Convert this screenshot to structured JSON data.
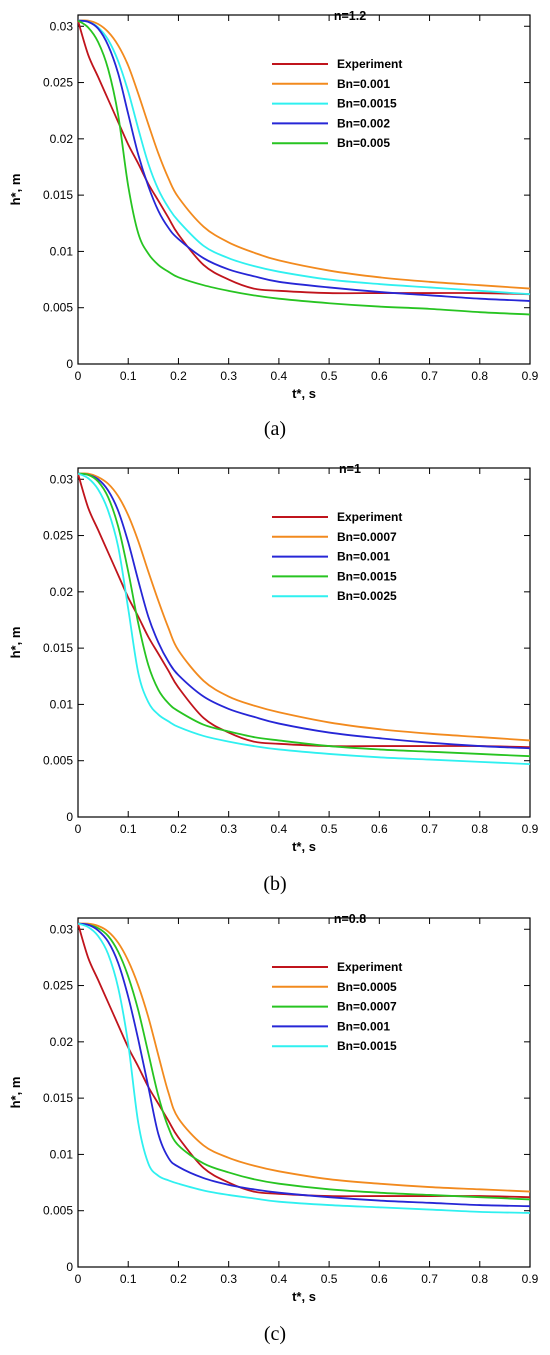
{
  "colors": {
    "experiment": "#c0141c",
    "orange": "#f28a1e",
    "cyan": "#2ff0f0",
    "blue": "#2626d6",
    "green": "#27c421"
  },
  "chart_data": [
    {
      "type": "line",
      "caption": "(a)",
      "annotation": "n=1.2",
      "xlabel": "t*, s",
      "ylabel": "h*, m",
      "xlim": [
        0,
        0.9
      ],
      "ylim": [
        0,
        0.031
      ],
      "xticks": [
        "0",
        "0.1",
        "0.2",
        "0.3",
        "0.4",
        "0.5",
        "0.6",
        "0.7",
        "0.8",
        "0.9"
      ],
      "yticks": [
        "0",
        "0.005",
        "0.01",
        "0.015",
        "0.02",
        "0.025",
        "0.03"
      ],
      "grid": false,
      "legend_position": "top-right",
      "x": [
        0,
        0.02,
        0.04,
        0.06,
        0.08,
        0.1,
        0.12,
        0.14,
        0.16,
        0.18,
        0.2,
        0.25,
        0.3,
        0.35,
        0.4,
        0.5,
        0.6,
        0.7,
        0.8,
        0.9
      ],
      "series": [
        {
          "name": "Experiment",
          "color": "#c0141c",
          "values": [
            0.0305,
            0.0275,
            0.0255,
            0.0235,
            0.0215,
            0.0195,
            0.0178,
            0.016,
            0.0145,
            0.013,
            0.0115,
            0.0088,
            0.0075,
            0.0067,
            0.0065,
            0.0063,
            0.0063,
            0.0063,
            0.0063,
            0.0062
          ]
        },
        {
          "name": "Bn=0.001",
          "color": "#f28a1e",
          "values": [
            0.0305,
            0.0305,
            0.0302,
            0.0295,
            0.0283,
            0.0265,
            0.024,
            0.0213,
            0.0187,
            0.0165,
            0.0148,
            0.0122,
            0.0108,
            0.0099,
            0.0092,
            0.0083,
            0.0077,
            0.0073,
            0.007,
            0.0067
          ]
        },
        {
          "name": "Bn=0.0015",
          "color": "#2ff0f0",
          "values": [
            0.0305,
            0.0304,
            0.0299,
            0.0288,
            0.0269,
            0.0242,
            0.0209,
            0.0178,
            0.0155,
            0.0139,
            0.0127,
            0.0105,
            0.0094,
            0.0087,
            0.0082,
            0.0075,
            0.0071,
            0.0068,
            0.0065,
            0.0062
          ]
        },
        {
          "name": "Bn=0.002",
          "color": "#2626d6",
          "values": [
            0.0305,
            0.0304,
            0.0298,
            0.0283,
            0.0258,
            0.0222,
            0.0186,
            0.0158,
            0.0136,
            0.0121,
            0.0111,
            0.0094,
            0.0084,
            0.0078,
            0.0073,
            0.0068,
            0.0064,
            0.0061,
            0.0058,
            0.0056
          ]
        },
        {
          "name": "Bn=0.005",
          "color": "#27c421",
          "values": [
            0.0305,
            0.0299,
            0.0286,
            0.0262,
            0.0221,
            0.0158,
            0.0116,
            0.0098,
            0.0088,
            0.0082,
            0.0077,
            0.007,
            0.0065,
            0.0061,
            0.0058,
            0.0054,
            0.0051,
            0.0049,
            0.0046,
            0.0044
          ]
        }
      ]
    },
    {
      "type": "line",
      "caption": "(b)",
      "annotation": "n=1",
      "xlabel": "t*, s",
      "ylabel": "h*, m",
      "xlim": [
        0,
        0.9
      ],
      "ylim": [
        0,
        0.031
      ],
      "xticks": [
        "0",
        "0.1",
        "0.2",
        "0.3",
        "0.4",
        "0.5",
        "0.6",
        "0.7",
        "0.8",
        "0.9"
      ],
      "yticks": [
        "0",
        "0.005",
        "0.01",
        "0.015",
        "0.02",
        "0.025",
        "0.03"
      ],
      "grid": false,
      "legend_position": "top-right",
      "x": [
        0,
        0.02,
        0.04,
        0.06,
        0.08,
        0.1,
        0.12,
        0.14,
        0.16,
        0.18,
        0.2,
        0.25,
        0.3,
        0.35,
        0.4,
        0.5,
        0.6,
        0.7,
        0.8,
        0.9
      ],
      "series": [
        {
          "name": "Experiment",
          "color": "#c0141c",
          "values": [
            0.0305,
            0.0275,
            0.0255,
            0.0235,
            0.0215,
            0.0195,
            0.0178,
            0.016,
            0.0145,
            0.013,
            0.0115,
            0.0088,
            0.0075,
            0.0067,
            0.0065,
            0.0063,
            0.0063,
            0.0063,
            0.0063,
            0.0062
          ]
        },
        {
          "name": "Bn=0.0007",
          "color": "#f28a1e",
          "values": [
            0.0305,
            0.0305,
            0.0302,
            0.0296,
            0.0285,
            0.0268,
            0.0245,
            0.0218,
            0.0192,
            0.0168,
            0.0148,
            0.0121,
            0.0107,
            0.0099,
            0.0093,
            0.0084,
            0.0078,
            0.0074,
            0.0071,
            0.0068
          ]
        },
        {
          "name": "Bn=0.001",
          "color": "#2626d6",
          "values": [
            0.0305,
            0.0304,
            0.03,
            0.029,
            0.0272,
            0.0244,
            0.021,
            0.0178,
            0.0155,
            0.0138,
            0.0126,
            0.0107,
            0.0096,
            0.0089,
            0.0083,
            0.0075,
            0.007,
            0.0066,
            0.0063,
            0.0061
          ]
        },
        {
          "name": "Bn=0.0015",
          "color": "#27c421",
          "values": [
            0.0305,
            0.0304,
            0.0298,
            0.0284,
            0.0258,
            0.0218,
            0.0172,
            0.0135,
            0.0113,
            0.0101,
            0.0094,
            0.0082,
            0.0076,
            0.0071,
            0.0068,
            0.0063,
            0.006,
            0.0058,
            0.0056,
            0.0054
          ]
        },
        {
          "name": "Bn=0.0025",
          "color": "#2ff0f0",
          "values": [
            0.0305,
            0.0301,
            0.0291,
            0.0272,
            0.024,
            0.0185,
            0.0128,
            0.0102,
            0.0091,
            0.0085,
            0.008,
            0.0072,
            0.0067,
            0.0063,
            0.006,
            0.0056,
            0.0053,
            0.0051,
            0.0049,
            0.0047
          ]
        }
      ]
    },
    {
      "type": "line",
      "caption": "(c)",
      "annotation": "n=0.8",
      "xlabel": "t*, s",
      "ylabel": "h*, m",
      "xlim": [
        0,
        0.9
      ],
      "ylim": [
        0,
        0.031
      ],
      "xticks": [
        "0",
        "0.1",
        "0.2",
        "0.3",
        "0.4",
        "0.5",
        "0.6",
        "0.7",
        "0.8",
        "0.9"
      ],
      "yticks": [
        "0",
        "0.005",
        "0.01",
        "0.015",
        "0.02",
        "0.025",
        "0.03"
      ],
      "grid": false,
      "legend_position": "top-right",
      "x": [
        0,
        0.02,
        0.04,
        0.06,
        0.08,
        0.1,
        0.12,
        0.14,
        0.16,
        0.18,
        0.2,
        0.25,
        0.3,
        0.35,
        0.4,
        0.5,
        0.6,
        0.7,
        0.8,
        0.9
      ],
      "series": [
        {
          "name": "Experiment",
          "color": "#c0141c",
          "values": [
            0.0305,
            0.0275,
            0.0255,
            0.0235,
            0.0215,
            0.0195,
            0.0178,
            0.016,
            0.0145,
            0.013,
            0.0115,
            0.0088,
            0.0075,
            0.0067,
            0.0065,
            0.0063,
            0.0063,
            0.0063,
            0.0063,
            0.0062
          ]
        },
        {
          "name": "Bn=0.0005",
          "color": "#f28a1e",
          "values": [
            0.0305,
            0.0305,
            0.0303,
            0.0298,
            0.0288,
            0.0272,
            0.025,
            0.0222,
            0.0188,
            0.0155,
            0.0132,
            0.0108,
            0.0097,
            0.009,
            0.0085,
            0.0078,
            0.0074,
            0.0071,
            0.0069,
            0.0067
          ]
        },
        {
          "name": "Bn=0.0007",
          "color": "#27c421",
          "values": [
            0.0305,
            0.0304,
            0.0301,
            0.0294,
            0.028,
            0.0258,
            0.0228,
            0.019,
            0.0152,
            0.0124,
            0.0108,
            0.0092,
            0.0084,
            0.0078,
            0.0074,
            0.0069,
            0.0066,
            0.0064,
            0.0062,
            0.006
          ]
        },
        {
          "name": "Bn=0.001",
          "color": "#2626d6",
          "values": [
            0.0305,
            0.0304,
            0.0299,
            0.0289,
            0.027,
            0.024,
            0.0202,
            0.016,
            0.0118,
            0.0097,
            0.0089,
            0.0079,
            0.0073,
            0.0069,
            0.0066,
            0.0062,
            0.0059,
            0.0057,
            0.0055,
            0.0054
          ]
        },
        {
          "name": "Bn=0.0015",
          "color": "#2ff0f0",
          "values": [
            0.0305,
            0.0302,
            0.0294,
            0.0278,
            0.0248,
            0.0198,
            0.0128,
            0.0092,
            0.0081,
            0.0077,
            0.0074,
            0.0068,
            0.0064,
            0.0061,
            0.0058,
            0.0055,
            0.0053,
            0.0051,
            0.0049,
            0.0048
          ]
        }
      ]
    }
  ]
}
